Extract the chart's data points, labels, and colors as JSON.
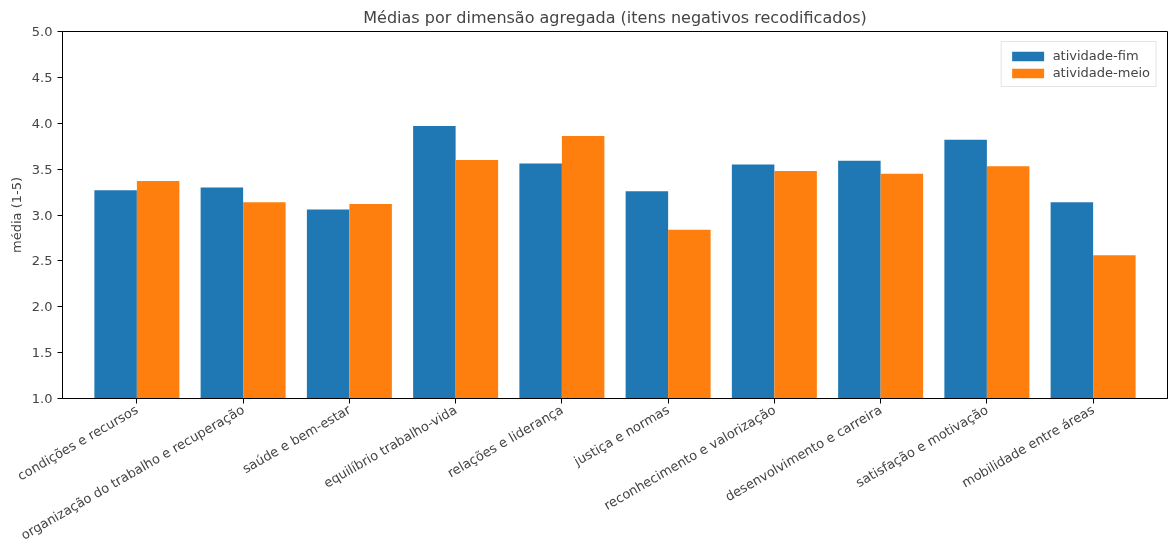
{
  "chart_data": {
    "type": "bar",
    "title": "Médias por dimensão agregada (itens negativos recodificados)",
    "ylabel": "média (1-5)",
    "categories": [
      "condições e recursos",
      "organização do trabalho e recuperação",
      "saúde e bem-estar",
      "equilíbrio trabalho-vida",
      "relações e liderança",
      "justiça e normas",
      "reconhecimento e valorização",
      "desenvolvimento e carreira",
      "satisfação e motivação",
      "mobilidade entre áreas"
    ],
    "series": [
      {
        "name": "atividade-fim",
        "color": "#1f77b4",
        "values": [
          3.27,
          3.3,
          3.06,
          3.97,
          3.56,
          3.26,
          3.55,
          3.59,
          3.82,
          3.14
        ]
      },
      {
        "name": "atividade-meio",
        "color": "#ff7f0e",
        "values": [
          3.37,
          3.14,
          3.12,
          3.6,
          3.86,
          2.84,
          3.48,
          3.45,
          3.53,
          2.56
        ]
      }
    ],
    "ylim": [
      1.0,
      5.0
    ],
    "yticks": [
      {
        "value": 1.0,
        "label": "1.0"
      },
      {
        "value": 1.5,
        "label": "1.5"
      },
      {
        "value": 2.0,
        "label": "2.0"
      },
      {
        "value": 2.5,
        "label": "2.5"
      },
      {
        "value": 3.0,
        "label": "3.0"
      },
      {
        "value": 3.5,
        "label": "3.5"
      },
      {
        "value": 4.0,
        "label": "4.0"
      },
      {
        "value": 4.5,
        "label": "4.5"
      },
      {
        "value": 5.0,
        "label": "5.0"
      }
    ],
    "grid": false,
    "legend": "top right"
  }
}
